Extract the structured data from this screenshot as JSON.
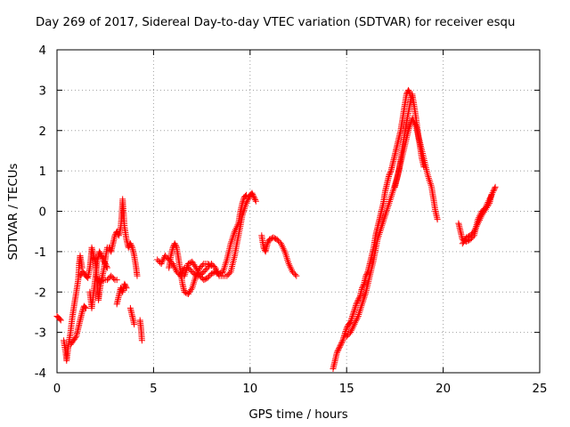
{
  "chart_data": {
    "type": "scatter",
    "title": "Day 269 of 2017, Sidereal Day-to-day VTEC variation (SDTVAR) for receiver esqu",
    "xlabel": "GPS time / hours",
    "ylabel": "SDTVAR / TECUs",
    "xlim": [
      0,
      25
    ],
    "ylim": [
      -4,
      4
    ],
    "xticks": [
      "0",
      "5",
      "10",
      "15",
      "20",
      "25"
    ],
    "yticks": [
      "-4",
      "-3",
      "-2",
      "-1",
      "0",
      "1",
      "2",
      "3",
      "4"
    ],
    "grid": true,
    "marker": "+",
    "color": "#ff0000",
    "series": [
      {
        "name": "SDTVAR",
        "traces": [
          [
            [
              0.0,
              -2.6
            ],
            [
              0.1,
              -2.65
            ],
            [
              0.2,
              -2.7
            ]
          ],
          [
            [
              0.35,
              -3.2
            ],
            [
              0.45,
              -3.5
            ],
            [
              0.5,
              -3.7
            ],
            [
              0.6,
              -3.3
            ],
            [
              0.7,
              -3.0
            ],
            [
              0.8,
              -2.6
            ],
            [
              0.9,
              -2.3
            ],
            [
              1.0,
              -2.0
            ],
            [
              1.1,
              -1.7
            ],
            [
              1.15,
              -1.3
            ],
            [
              1.2,
              -1.1
            ],
            [
              1.3,
              -1.4
            ]
          ],
          [
            [
              0.7,
              -3.3
            ],
            [
              0.85,
              -3.2
            ],
            [
              1.0,
              -3.1
            ],
            [
              1.1,
              -2.9
            ],
            [
              1.2,
              -2.7
            ],
            [
              1.3,
              -2.5
            ],
            [
              1.4,
              -2.35
            ],
            [
              1.5,
              -2.4
            ]
          ],
          [
            [
              1.2,
              -1.6
            ],
            [
              1.35,
              -1.5
            ],
            [
              1.5,
              -1.6
            ],
            [
              1.6,
              -1.65
            ],
            [
              1.7,
              -1.4
            ],
            [
              1.75,
              -1.2
            ],
            [
              1.8,
              -0.9
            ],
            [
              1.9,
              -1.1
            ],
            [
              2.0,
              -1.3
            ],
            [
              2.05,
              -1.6
            ],
            [
              2.1,
              -1.9
            ],
            [
              2.15,
              -2.2
            ],
            [
              2.2,
              -2.0
            ],
            [
              2.3,
              -1.7
            ],
            [
              2.4,
              -1.5
            ],
            [
              2.5,
              -1.2
            ],
            [
              2.6,
              -0.9
            ],
            [
              2.7,
              -0.9
            ],
            [
              2.8,
              -1.0
            ],
            [
              2.9,
              -0.8
            ],
            [
              3.0,
              -0.6
            ],
            [
              3.1,
              -0.5
            ],
            [
              3.2,
              -0.6
            ],
            [
              3.3,
              -0.4
            ],
            [
              3.35,
              -0.1
            ],
            [
              3.4,
              0.3
            ],
            [
              3.5,
              -0.4
            ],
            [
              3.6,
              -0.7
            ],
            [
              3.7,
              -0.9
            ],
            [
              3.8,
              -0.8
            ],
            [
              3.9,
              -0.9
            ],
            [
              4.0,
              -1.1
            ],
            [
              4.1,
              -1.4
            ],
            [
              4.15,
              -1.6
            ]
          ],
          [
            [
              1.7,
              -2.0
            ],
            [
              1.8,
              -2.4
            ],
            [
              1.9,
              -2.0
            ],
            [
              2.0,
              -1.6
            ],
            [
              2.1,
              -1.2
            ],
            [
              2.2,
              -1.0
            ],
            [
              2.3,
              -1.1
            ],
            [
              2.4,
              -1.2
            ],
            [
              2.5,
              -1.3
            ],
            [
              2.6,
              -1.4
            ]
          ],
          [
            [
              2.0,
              -1.6
            ],
            [
              2.2,
              -1.75
            ],
            [
              2.4,
              -1.7
            ],
            [
              2.6,
              -1.7
            ],
            [
              2.8,
              -1.6
            ],
            [
              3.0,
              -1.7
            ],
            [
              3.1,
              -1.7
            ]
          ],
          [
            [
              3.1,
              -2.3
            ],
            [
              3.2,
              -2.1
            ],
            [
              3.3,
              -1.9
            ],
            [
              3.4,
              -2.0
            ],
            [
              3.5,
              -1.8
            ],
            [
              3.6,
              -1.9
            ]
          ],
          [
            [
              3.8,
              -2.4
            ],
            [
              3.9,
              -2.6
            ],
            [
              4.0,
              -2.8
            ]
          ],
          [
            [
              4.3,
              -2.7
            ],
            [
              4.35,
              -2.9
            ],
            [
              4.4,
              -3.2
            ]
          ],
          [
            [
              5.2,
              -1.2
            ],
            [
              5.4,
              -1.3
            ],
            [
              5.6,
              -1.1
            ],
            [
              5.8,
              -1.2
            ],
            [
              6.0,
              -1.3
            ],
            [
              6.2,
              -1.5
            ],
            [
              6.4,
              -1.6
            ],
            [
              6.6,
              -1.4
            ],
            [
              6.8,
              -1.4
            ],
            [
              7.0,
              -1.5
            ],
            [
              7.2,
              -1.6
            ],
            [
              7.4,
              -1.6
            ],
            [
              7.6,
              -1.5
            ],
            [
              7.8,
              -1.4
            ],
            [
              8.0,
              -1.3
            ],
            [
              8.2,
              -1.4
            ],
            [
              8.4,
              -1.6
            ],
            [
              8.6,
              -1.6
            ],
            [
              8.8,
              -1.6
            ],
            [
              9.0,
              -1.5
            ],
            [
              9.2,
              -1.1
            ],
            [
              9.4,
              -0.6
            ],
            [
              9.6,
              -0.1
            ],
            [
              9.8,
              0.2
            ],
            [
              9.95,
              0.35
            ],
            [
              10.0,
              0.4
            ],
            [
              10.1,
              0.45
            ],
            [
              10.2,
              0.35
            ],
            [
              10.3,
              0.25
            ]
          ],
          [
            [
              5.8,
              -1.4
            ],
            [
              5.9,
              -1.1
            ],
            [
              6.0,
              -0.9
            ],
            [
              6.1,
              -0.8
            ],
            [
              6.2,
              -0.9
            ],
            [
              6.3,
              -1.2
            ],
            [
              6.4,
              -1.5
            ],
            [
              6.5,
              -1.8
            ],
            [
              6.6,
              -2.0
            ],
            [
              6.8,
              -2.05
            ],
            [
              7.0,
              -1.9
            ],
            [
              7.2,
              -1.6
            ],
            [
              7.4,
              -1.4
            ],
            [
              7.6,
              -1.3
            ],
            [
              7.8,
              -1.3
            ],
            [
              8.0,
              -1.35
            ]
          ],
          [
            [
              6.6,
              -1.6
            ],
            [
              6.8,
              -1.3
            ],
            [
              7.0,
              -1.25
            ],
            [
              7.2,
              -1.4
            ],
            [
              7.4,
              -1.6
            ],
            [
              7.6,
              -1.7
            ],
            [
              7.8,
              -1.65
            ],
            [
              8.0,
              -1.55
            ],
            [
              8.2,
              -1.5
            ],
            [
              8.4,
              -1.55
            ],
            [
              8.6,
              -1.5
            ],
            [
              8.8,
              -1.2
            ],
            [
              9.0,
              -0.8
            ],
            [
              9.2,
              -0.5
            ],
            [
              9.4,
              -0.3
            ],
            [
              9.5,
              0.0
            ],
            [
              9.6,
              0.2
            ],
            [
              9.7,
              0.35
            ],
            [
              9.8,
              0.4
            ]
          ],
          [
            [
              10.6,
              -0.6
            ],
            [
              10.7,
              -0.9
            ],
            [
              10.8,
              -1.0
            ],
            [
              10.9,
              -0.8
            ],
            [
              11.0,
              -0.7
            ],
            [
              11.2,
              -0.65
            ],
            [
              11.4,
              -0.7
            ],
            [
              11.6,
              -0.8
            ],
            [
              11.8,
              -1.0
            ],
            [
              12.0,
              -1.3
            ],
            [
              12.2,
              -1.5
            ],
            [
              12.4,
              -1.6
            ]
          ],
          [
            [
              14.3,
              -3.9
            ],
            [
              14.4,
              -3.7
            ],
            [
              14.5,
              -3.5
            ],
            [
              14.6,
              -3.4
            ],
            [
              14.7,
              -3.3
            ],
            [
              14.8,
              -3.2
            ],
            [
              14.9,
              -3.05
            ],
            [
              15.0,
              -2.9
            ],
            [
              15.1,
              -2.8
            ],
            [
              15.2,
              -2.75
            ],
            [
              15.3,
              -2.6
            ],
            [
              15.4,
              -2.45
            ],
            [
              15.5,
              -2.3
            ],
            [
              15.6,
              -2.2
            ],
            [
              15.7,
              -2.1
            ],
            [
              15.8,
              -1.9
            ],
            [
              15.9,
              -1.8
            ],
            [
              16.0,
              -1.6
            ],
            [
              16.1,
              -1.5
            ],
            [
              16.2,
              -1.3
            ],
            [
              16.3,
              -1.1
            ],
            [
              16.4,
              -0.9
            ],
            [
              16.5,
              -0.6
            ],
            [
              16.6,
              -0.4
            ],
            [
              16.7,
              -0.2
            ],
            [
              16.8,
              0.0
            ],
            [
              16.9,
              0.2
            ],
            [
              17.0,
              0.5
            ],
            [
              17.1,
              0.7
            ],
            [
              17.2,
              0.9
            ],
            [
              17.3,
              1.0
            ],
            [
              17.4,
              1.2
            ],
            [
              17.5,
              1.4
            ],
            [
              17.6,
              1.6
            ],
            [
              17.7,
              1.8
            ],
            [
              17.8,
              2.0
            ],
            [
              17.9,
              2.3
            ],
            [
              18.0,
              2.6
            ],
            [
              18.1,
              2.9
            ],
            [
              18.2,
              3.0
            ],
            [
              18.3,
              2.9
            ]
          ],
          [
            [
              15.0,
              -3.1
            ],
            [
              15.2,
              -3.0
            ],
            [
              15.4,
              -2.8
            ],
            [
              15.6,
              -2.6
            ],
            [
              15.8,
              -2.3
            ],
            [
              16.0,
              -2.0
            ],
            [
              16.2,
              -1.6
            ],
            [
              16.4,
              -1.2
            ],
            [
              16.6,
              -0.7
            ],
            [
              16.8,
              -0.4
            ],
            [
              17.0,
              -0.1
            ],
            [
              17.2,
              0.2
            ],
            [
              17.4,
              0.5
            ],
            [
              17.6,
              0.8
            ],
            [
              17.8,
              1.2
            ],
            [
              18.0,
              1.6
            ],
            [
              18.2,
              2.0
            ],
            [
              18.4,
              2.3
            ],
            [
              18.6,
              2.1
            ],
            [
              18.8,
              1.7
            ],
            [
              19.0,
              1.3
            ],
            [
              19.2,
              0.9
            ],
            [
              19.4,
              0.6
            ],
            [
              19.5,
              0.3
            ],
            [
              19.6,
              0.0
            ],
            [
              19.7,
              -0.2
            ]
          ],
          [
            [
              17.5,
              0.6
            ],
            [
              17.7,
              1.0
            ],
            [
              17.9,
              1.6
            ],
            [
              18.1,
              2.2
            ],
            [
              18.3,
              2.7
            ],
            [
              18.4,
              2.9
            ],
            [
              18.5,
              2.6
            ],
            [
              18.6,
              2.3
            ],
            [
              18.7,
              1.9
            ],
            [
              18.8,
              1.6
            ],
            [
              18.9,
              1.3
            ],
            [
              19.0,
              1.1
            ]
          ],
          [
            [
              20.8,
              -0.3
            ],
            [
              20.9,
              -0.5
            ],
            [
              21.0,
              -0.7
            ],
            [
              21.2,
              -0.75
            ],
            [
              21.4,
              -0.7
            ],
            [
              21.6,
              -0.6
            ],
            [
              21.8,
              -0.2
            ],
            [
              22.0,
              0.0
            ],
            [
              22.2,
              0.1
            ],
            [
              22.4,
              0.3
            ],
            [
              22.6,
              0.5
            ],
            [
              22.7,
              0.6
            ]
          ],
          [
            [
              21.0,
              -0.8
            ],
            [
              21.2,
              -0.65
            ],
            [
              21.4,
              -0.6
            ],
            [
              21.6,
              -0.5
            ],
            [
              21.8,
              -0.3
            ],
            [
              22.0,
              -0.1
            ],
            [
              22.2,
              0.05
            ],
            [
              22.4,
              0.2
            ],
            [
              22.5,
              0.4
            ]
          ]
        ]
      }
    ]
  }
}
